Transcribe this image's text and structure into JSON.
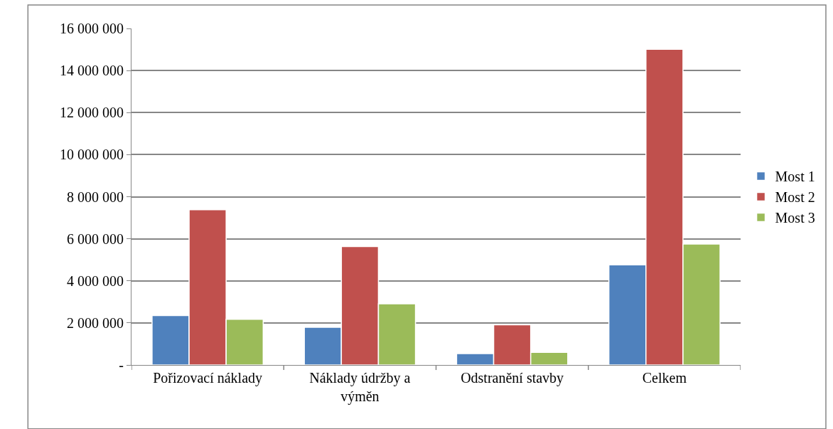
{
  "chart_data": {
    "type": "bar",
    "categories": [
      "Pořizovací náklady",
      "Náklady údržby a výměn",
      "Odstranění stavby",
      "Celkem"
    ],
    "series": [
      {
        "name": "Most 1",
        "color": "#4f81bd",
        "values": [
          2350000,
          1790000,
          540000,
          4760000
        ]
      },
      {
        "name": "Most 2",
        "color": "#c0504d",
        "values": [
          7380000,
          5630000,
          1910000,
          15010000
        ]
      },
      {
        "name": "Most 3",
        "color": "#9bbb59",
        "values": [
          2170000,
          2910000,
          600000,
          5750000
        ]
      }
    ],
    "ylim": [
      0,
      16000000
    ],
    "yticks": [
      {
        "value": 0,
        "label": "-"
      },
      {
        "value": 2000000,
        "label": "2 000 000"
      },
      {
        "value": 4000000,
        "label": "4 000 000"
      },
      {
        "value": 6000000,
        "label": "6 000 000"
      },
      {
        "value": 8000000,
        "label": "8 000 000"
      },
      {
        "value": 10000000,
        "label": "10 000 000"
      },
      {
        "value": 12000000,
        "label": "12 000 000"
      },
      {
        "value": 14000000,
        "label": "14 000 000"
      },
      {
        "value": 16000000,
        "label": "16 000 000"
      }
    ],
    "grid": "y",
    "legend": "right"
  }
}
